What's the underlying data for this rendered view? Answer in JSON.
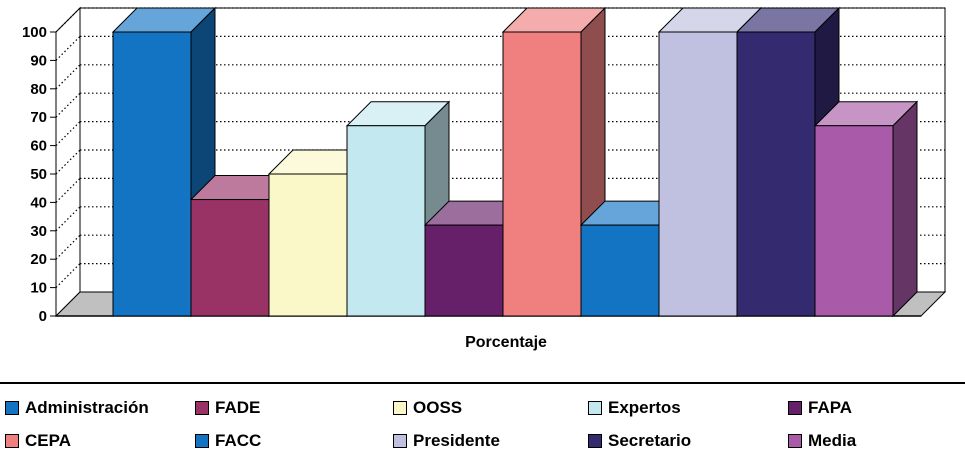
{
  "chart_data": {
    "type": "bar",
    "xlabel": "Porcentaje",
    "ylabel": "",
    "ylim": [
      0,
      100
    ],
    "yticks": [
      "0",
      "10",
      "20",
      "30",
      "40",
      "50",
      "60",
      "70",
      "80",
      "90",
      "100"
    ],
    "grid": true,
    "legend_position": "bottom",
    "series": [
      {
        "name": "Administración",
        "value": 100,
        "color": "#1474C4"
      },
      {
        "name": "FADE",
        "value": 41,
        "color": "#993366"
      },
      {
        "name": "OOSS",
        "value": 50,
        "color": "#FAF7C8"
      },
      {
        "name": "Expertos",
        "value": 67,
        "color": "#C4E8F0"
      },
      {
        "name": "FAPA",
        "value": 32,
        "color": "#66206A"
      },
      {
        "name": "CEPA",
        "value": 100,
        "color": "#F08080"
      },
      {
        "name": "FACC",
        "value": 32,
        "color": "#1474C4"
      },
      {
        "name": "Presidente",
        "value": 100,
        "color": "#C0C0E0"
      },
      {
        "name": "Secretario",
        "value": 100,
        "color": "#332A70"
      },
      {
        "name": "Media",
        "value": 67,
        "color": "#A95AA8"
      }
    ]
  }
}
